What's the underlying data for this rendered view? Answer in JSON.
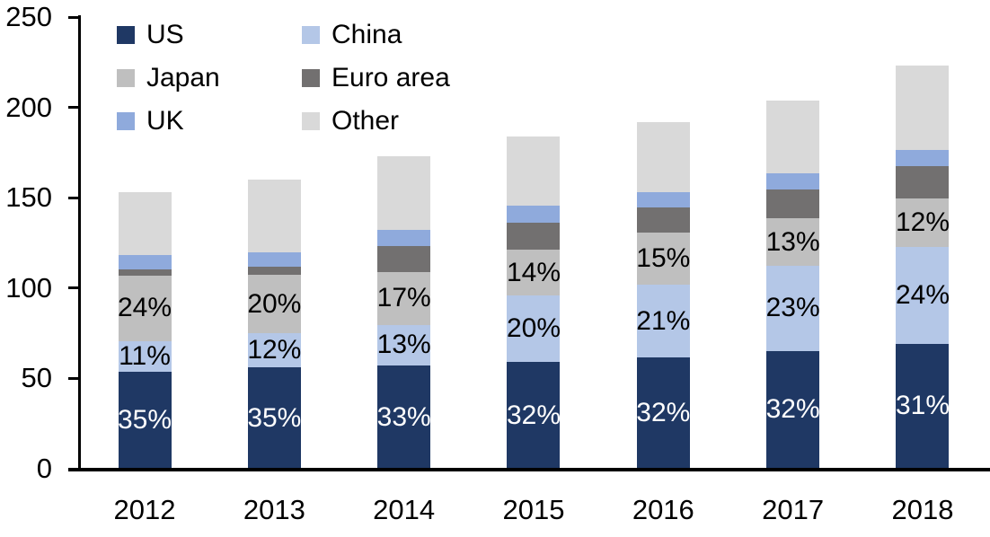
{
  "chart_data": {
    "type": "bar",
    "subtype": "stacked",
    "title": "",
    "categories": [
      "2012",
      "2013",
      "2014",
      "2015",
      "2016",
      "2017",
      "2018"
    ],
    "series": [
      {
        "name": "US",
        "color": "#1F3864",
        "label_color": "#FFFFFF",
        "values": [
          53.6,
          56.0,
          57.1,
          58.9,
          61.4,
          65.3,
          69.1
        ],
        "labels": [
          "35%",
          "35%",
          "33%",
          "32%",
          "32%",
          "32%",
          "31%"
        ]
      },
      {
        "name": "China",
        "color": "#B4C7E7",
        "label_color": "#000000",
        "values": [
          16.8,
          19.2,
          22.5,
          36.8,
          40.3,
          46.9,
          53.5
        ],
        "labels": [
          "11%",
          "12%",
          "13%",
          "20%",
          "21%",
          "23%",
          "24%"
        ]
      },
      {
        "name": "Japan",
        "color": "#BFBFBF",
        "label_color": "#000000",
        "values": [
          36.7,
          32.0,
          29.4,
          25.8,
          28.8,
          26.5,
          26.8
        ],
        "labels": [
          "24%",
          "20%",
          "17%",
          "14%",
          "15%",
          "13%",
          "12%"
        ]
      },
      {
        "name": "Euro area",
        "color": "#727070",
        "label_color": "#000000",
        "values": [
          3.5,
          4.5,
          14.4,
          14.5,
          14.0,
          15.7,
          18.2
        ],
        "labels": [
          "",
          "",
          "",
          "",
          "",
          "",
          ""
        ]
      },
      {
        "name": "UK",
        "color": "#8FAADC",
        "label_color": "#000000",
        "values": [
          7.5,
          8.0,
          8.9,
          9.8,
          8.6,
          8.9,
          9.1
        ],
        "labels": [
          "",
          "",
          "",
          "",
          "",
          "",
          ""
        ]
      },
      {
        "name": "Other",
        "color": "#D9D9D9",
        "label_color": "#000000",
        "values": [
          35.0,
          40.3,
          40.7,
          38.2,
          38.9,
          40.7,
          46.3
        ],
        "labels": [
          "",
          "",
          "",
          "",
          "",
          "",
          ""
        ]
      }
    ],
    "y_axis": {
      "min": 0,
      "max": 250,
      "step": 50,
      "ticks": [
        "0",
        "50",
        "100",
        "150",
        "200",
        "250"
      ]
    },
    "legend": {
      "position": "top-left",
      "columns": 2,
      "order": [
        "US",
        "China",
        "Japan",
        "Euro area",
        "UK",
        "Other"
      ]
    },
    "grid": "off",
    "axis_color": "#000000"
  }
}
